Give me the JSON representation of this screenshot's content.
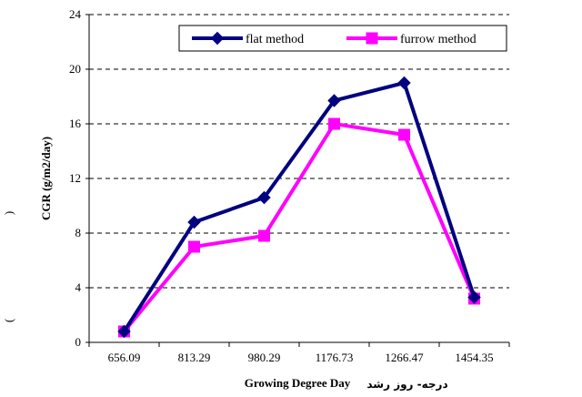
{
  "chart_data": {
    "type": "line",
    "categories": [
      "656.09",
      "813.29",
      "980.29",
      "1176.73",
      "1266.47",
      "1454.35"
    ],
    "series": [
      {
        "name": "flat method",
        "color": "#000080",
        "marker": "diamond",
        "values": [
          0.8,
          8.8,
          10.6,
          17.7,
          19.0,
          3.3
        ]
      },
      {
        "name": "furrow method",
        "color": "#FF00FF",
        "marker": "square",
        "values": [
          0.8,
          7.0,
          7.8,
          16.0,
          15.2,
          3.2
        ]
      }
    ],
    "ylim": [
      0,
      24
    ],
    "yticks": [
      0,
      4,
      8,
      12,
      16,
      20,
      24
    ],
    "ylabel": "CGR (g/m2/day)",
    "xlabel": "Growing Degree Day",
    "xlabel_extra": "درجه- روز رشد",
    "ylabel_extra_open": ")",
    "ylabel_extra_close": "(",
    "grid": "horizontal dashed",
    "legend_position": "top"
  }
}
